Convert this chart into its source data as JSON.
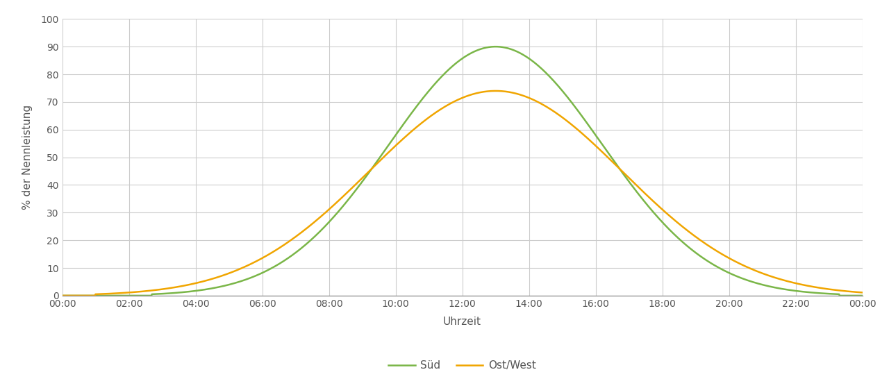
{
  "title": "",
  "xlabel": "Uhrzeit",
  "ylabel": "% der Nennleistung",
  "ylim": [
    0,
    100
  ],
  "xlim": [
    0,
    24
  ],
  "xtick_labels": [
    "00:00",
    "02:00",
    "04:00",
    "06:00",
    "08:00",
    "10:00",
    "12:00",
    "14:00",
    "16:00",
    "18:00",
    "20:00",
    "22:00",
    "00:00"
  ],
  "xtick_positions": [
    0,
    2,
    4,
    6,
    8,
    10,
    12,
    14,
    16,
    18,
    20,
    22,
    24
  ],
  "ytick_positions": [
    0,
    10,
    20,
    30,
    40,
    50,
    60,
    70,
    80,
    90,
    100
  ],
  "sud_color": "#7ab648",
  "ostwest_color": "#f0a500",
  "sud_peak": 90,
  "sud_peak_time": 13.0,
  "sud_sigma": 3.2,
  "ostwest_peak": 74,
  "ostwest_peak_time": 13.0,
  "ostwest_sigma": 3.8,
  "zero_threshold": 0.5,
  "legend_labels": [
    "Süd",
    "Ost/West"
  ],
  "background_color": "#ffffff",
  "grid_color": "#cccccc",
  "line_width": 1.8,
  "font_color": "#555555",
  "xlabel_fontsize": 11,
  "ylabel_fontsize": 11,
  "tick_fontsize": 10,
  "legend_fontsize": 11
}
